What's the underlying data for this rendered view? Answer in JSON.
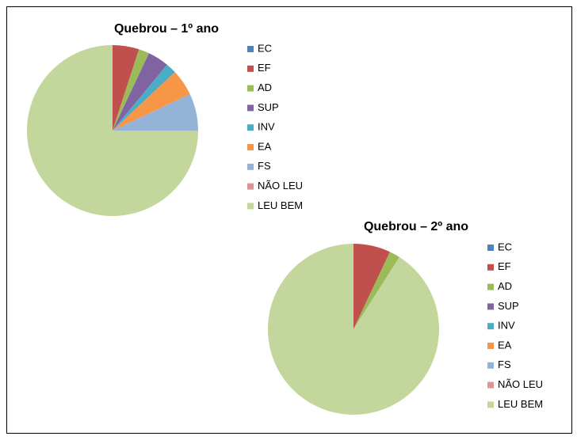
{
  "chart_data": [
    {
      "type": "pie",
      "title": "Quebrou – 1º ano",
      "categories": [
        "EC",
        "EF",
        "AD",
        "SUP",
        "INV",
        "EA",
        "FS",
        "NÃO LEU",
        "LEU BEM"
      ],
      "values": [
        0,
        5,
        2,
        4,
        2,
        5,
        7,
        0,
        75
      ],
      "colors": [
        "#4f81bd",
        "#c0504d",
        "#9bbb59",
        "#8064a2",
        "#4bacc6",
        "#f79646",
        "#95b3d7",
        "#d99694",
        "#c3d69b"
      ]
    },
    {
      "type": "pie",
      "title": "Quebrou – 2º ano",
      "categories": [
        "EC",
        "EF",
        "AD",
        "SUP",
        "INV",
        "EA",
        "FS",
        "NÃO LEU",
        "LEU BEM"
      ],
      "values": [
        0,
        7,
        2,
        0,
        0,
        0,
        0,
        0,
        91
      ],
      "colors": [
        "#4f81bd",
        "#c0504d",
        "#9bbb59",
        "#8064a2",
        "#4bacc6",
        "#f79646",
        "#95b3d7",
        "#d99694",
        "#c3d69b"
      ]
    }
  ]
}
